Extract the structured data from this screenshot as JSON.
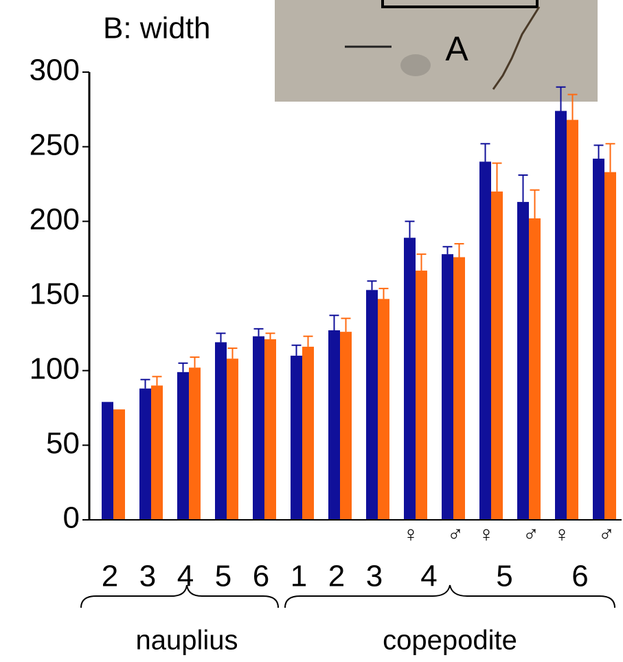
{
  "inset_label": "A",
  "chart_data": {
    "type": "bar",
    "title": "B: width",
    "categories": [
      "2",
      "3",
      "4",
      "5",
      "6",
      "1",
      "2",
      "3",
      "♀",
      "♂",
      "♀",
      "♂",
      "♀",
      "♂"
    ],
    "stage_numbers": [
      "4",
      "5",
      "6"
    ],
    "groups": [
      {
        "label": "nauplius"
      },
      {
        "label": "copepodite"
      }
    ],
    "series": [
      {
        "color": "#10109a",
        "values": [
          79,
          88,
          99,
          119,
          123,
          110,
          127,
          154,
          189,
          178,
          240,
          213,
          274,
          242
        ],
        "errors": [
          0,
          6,
          6,
          6,
          5,
          7,
          10,
          6,
          11,
          5,
          12,
          18,
          16,
          9
        ]
      },
      {
        "color": "#ff6a10",
        "values": [
          74,
          90,
          102,
          108,
          121,
          116,
          126,
          148,
          167,
          176,
          220,
          202,
          268,
          233
        ],
        "errors": [
          0,
          6,
          7,
          7,
          4,
          7,
          9,
          7,
          11,
          9,
          19,
          19,
          17,
          19
        ]
      }
    ],
    "ylim": [
      0,
      300
    ],
    "yticks": [
      0,
      50,
      100,
      150,
      200,
      250,
      300
    ]
  }
}
